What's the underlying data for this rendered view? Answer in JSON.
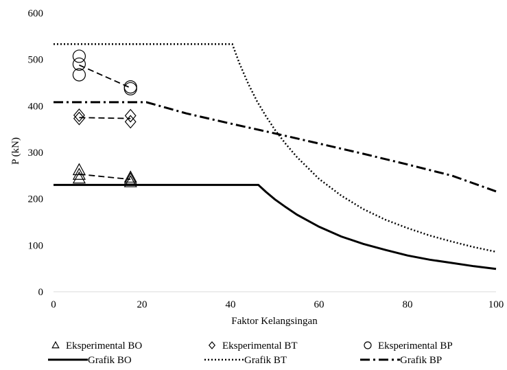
{
  "chart_data": {
    "type": "line",
    "title": "",
    "xlabel": "Faktor Kelangsingan",
    "ylabel": "P (kN)",
    "xlim": [
      0,
      100
    ],
    "ylim": [
      0,
      600
    ],
    "x_ticks": [
      0,
      20,
      40,
      60,
      80,
      100
    ],
    "y_ticks": [
      0,
      100,
      200,
      300,
      400,
      500,
      600
    ],
    "grid": false,
    "legend_position": "bottom",
    "series": [
      {
        "name": "Grafik BO",
        "kind": "line",
        "style": "solid",
        "points": [
          [
            0,
            230
          ],
          [
            46.3,
            230
          ],
          [
            48,
            215
          ],
          [
            50,
            199
          ],
          [
            52.5,
            182
          ],
          [
            55,
            166
          ],
          [
            60,
            140
          ],
          [
            65,
            119
          ],
          [
            70,
            103
          ],
          [
            75,
            90
          ],
          [
            80,
            78
          ],
          [
            85,
            69
          ],
          [
            90,
            62
          ],
          [
            95,
            55
          ],
          [
            100,
            49
          ]
        ]
      },
      {
        "name": "Grafik BT",
        "kind": "line",
        "style": "dotted",
        "points": [
          [
            0,
            533
          ],
          [
            40.4,
            533
          ],
          [
            42,
            492
          ],
          [
            44,
            448
          ],
          [
            46,
            410
          ],
          [
            48,
            378
          ],
          [
            50,
            349
          ],
          [
            52.5,
            318
          ],
          [
            55,
            290
          ],
          [
            60,
            243
          ],
          [
            65,
            207
          ],
          [
            70,
            178
          ],
          [
            75,
            155
          ],
          [
            80,
            137
          ],
          [
            85,
            121
          ],
          [
            90,
            108
          ],
          [
            95,
            96
          ],
          [
            100,
            86
          ]
        ]
      },
      {
        "name": "Grafik BP",
        "kind": "line",
        "style": "dash-dot",
        "points": [
          [
            0,
            408
          ],
          [
            21,
            408
          ],
          [
            30,
            384
          ],
          [
            40,
            362
          ],
          [
            50,
            341
          ],
          [
            60,
            319
          ],
          [
            70,
            297
          ],
          [
            80,
            274
          ],
          [
            90,
            250
          ],
          [
            100,
            216
          ]
        ]
      },
      {
        "name": "Eksperimental BO",
        "kind": "marker",
        "marker": "triangle",
        "points": [
          [
            5.8,
            244
          ],
          [
            5.8,
            252
          ],
          [
            5.8,
            262
          ],
          [
            17.4,
            236
          ],
          [
            17.4,
            242
          ],
          [
            17.4,
            246
          ]
        ],
        "trend": [
          [
            5.8,
            253
          ],
          [
            17.4,
            242
          ]
        ]
      },
      {
        "name": "Eksperimental BT",
        "kind": "marker",
        "marker": "diamond",
        "points": [
          [
            5.8,
            373
          ],
          [
            5.8,
            380
          ],
          [
            17.4,
            366
          ],
          [
            17.4,
            379
          ]
        ],
        "trend": [
          [
            5.8,
            375
          ],
          [
            17.4,
            373
          ]
        ]
      },
      {
        "name": "Eksperimental BP",
        "kind": "marker",
        "marker": "circle",
        "points": [
          [
            5.8,
            467
          ],
          [
            5.8,
            490
          ],
          [
            5.8,
            507
          ],
          [
            17.4,
            437
          ],
          [
            17.4,
            441
          ]
        ],
        "trend": [
          [
            5.8,
            488
          ],
          [
            17.4,
            439
          ]
        ]
      }
    ],
    "legend": [
      {
        "label": "Eksperimental BO",
        "symbol": "triangle"
      },
      {
        "label": "Eksperimental BT",
        "symbol": "diamond"
      },
      {
        "label": "Eksperimental BP",
        "symbol": "circle"
      },
      {
        "label": "Grafik BO",
        "symbol": "solid"
      },
      {
        "label": "Grafik BT",
        "symbol": "dotted"
      },
      {
        "label": "Grafik BP",
        "symbol": "dash-dot"
      }
    ]
  }
}
